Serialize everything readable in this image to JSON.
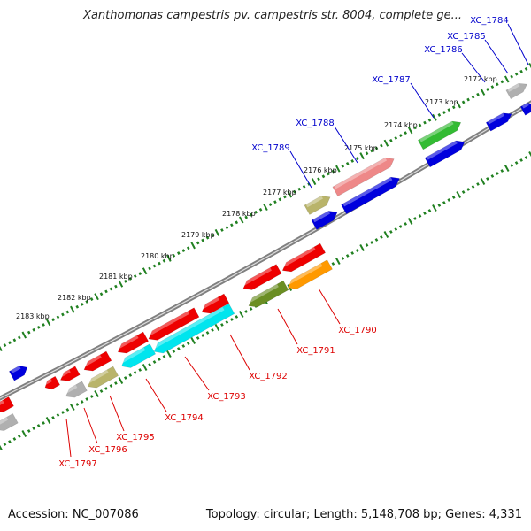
{
  "title": "Xanthomonas campestris pv. campestris str. 8004, complete ge...",
  "footer": {
    "accession": "Accession: NC_007086",
    "stats": "Topology: circular; Length: 5,148,708 bp; Genes: 4,331"
  },
  "colors": {
    "backbone": "#808080",
    "tick": "#208020",
    "forward_label": "#0000cc",
    "reverse_label": "#dd0000",
    "gene_red": "#ee0000",
    "gene_blue": "#0000dd",
    "gene_cyan": "#00e5ee",
    "gene_khaki": "#b9b46a",
    "gene_gray": "#b0b0b0",
    "gene_green": "#33bb33",
    "gene_pink": "#ee8888",
    "gene_olive": "#6b8e23",
    "gene_orange": "#ff9900"
  },
  "scale_labels": [
    "2172 kbp",
    "2173 kbp",
    "2174 kbp",
    "2175 kbp",
    "2176 kbp",
    "2177 kbp",
    "2178 kbp",
    "2179 kbp",
    "2180 kbp",
    "2181 kbp",
    "2182 kbp",
    "2183 kbp"
  ],
  "forward_gene_labels": [
    "XC_1784",
    "XC_1785",
    "XC_1786",
    "XC_1787",
    "XC_1788",
    "XC_1789"
  ],
  "reverse_gene_labels": [
    "XC_1790",
    "XC_1791",
    "XC_1792",
    "XC_1793",
    "XC_1794",
    "XC_1795",
    "XC_1796",
    "XC_1797"
  ]
}
